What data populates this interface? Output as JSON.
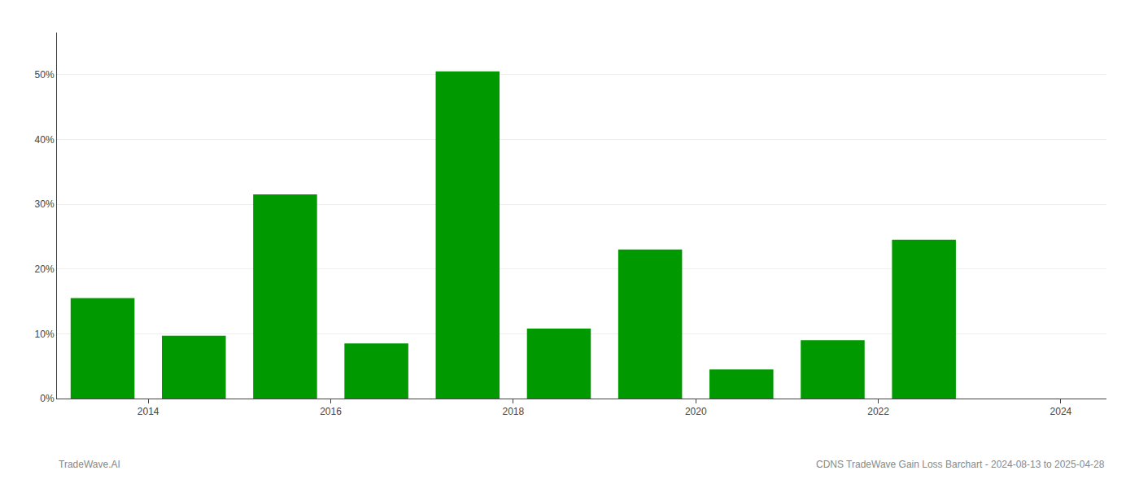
{
  "chart_data": {
    "type": "bar",
    "x": [
      2014,
      2015,
      2016,
      2017,
      2018,
      2019,
      2020,
      2021,
      2022,
      2023,
      2024
    ],
    "values": [
      0.155,
      0.097,
      0.315,
      0.085,
      0.505,
      0.108,
      0.23,
      0.045,
      0.09,
      0.245,
      0.0
    ],
    "color": "#009900",
    "xlim": [
      2013.5,
      2025.0
    ],
    "xticks": [
      {
        "value": 2014.5,
        "label": "2014"
      },
      {
        "value": 2016.5,
        "label": "2016"
      },
      {
        "value": 2018.5,
        "label": "2018"
      },
      {
        "value": 2020.5,
        "label": "2020"
      },
      {
        "value": 2022.5,
        "label": "2022"
      },
      {
        "value": 2024.5,
        "label": "2024"
      }
    ],
    "ylim": [
      0,
      0.565
    ],
    "yticks": [
      {
        "value": 0.0,
        "label": "0%"
      },
      {
        "value": 0.1,
        "label": "10%"
      },
      {
        "value": 0.2,
        "label": "20%"
      },
      {
        "value": 0.3,
        "label": "30%"
      },
      {
        "value": 0.4,
        "label": "40%"
      },
      {
        "value": 0.5,
        "label": "50%"
      }
    ],
    "grid": true,
    "annotations": [
      "TradeWave.AI",
      "CDNS TradeWave Gain Loss Barchart - 2024-08-13 to 2025-04-28"
    ]
  }
}
